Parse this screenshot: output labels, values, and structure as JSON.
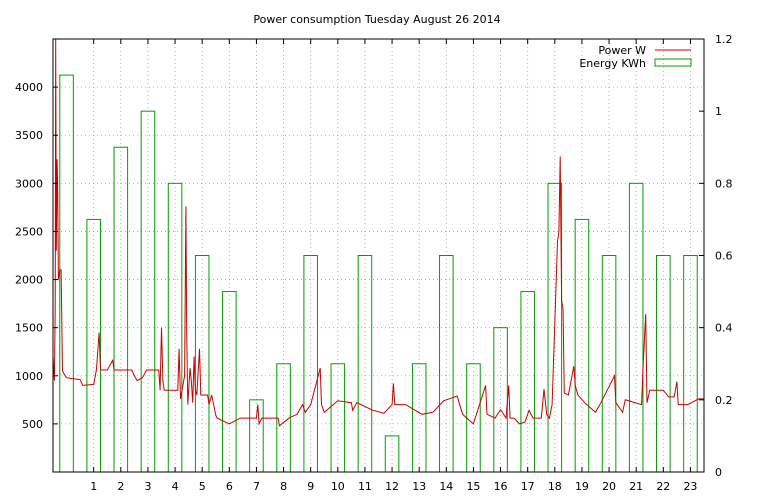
{
  "chart_data": {
    "type": "bar+line",
    "title": "Power consumption Tuesday August 26 2014",
    "x_ticks": [
      "1",
      "2",
      "3",
      "4",
      "5",
      "6",
      "7",
      "8",
      "9",
      "10",
      "11",
      "12",
      "13",
      "14",
      "15",
      "16",
      "17",
      "18",
      "19",
      "20",
      "21",
      "22",
      "23"
    ],
    "xlim": [
      0,
      24
    ],
    "y_left": {
      "ticks": [
        "500",
        "1000",
        "1500",
        "2000",
        "2500",
        "3000",
        "3500",
        "4000"
      ],
      "lim": [
        0,
        4500
      ],
      "unit": "W"
    },
    "y_right": {
      "ticks": [
        "0",
        "0.2",
        "0.4",
        "0.6",
        "0.8",
        "1",
        "1.2"
      ],
      "lim": [
        0,
        1.2
      ],
      "unit": "KWh"
    },
    "grid": true,
    "legend_position": "top-right",
    "series": [
      {
        "name": "Power W",
        "axis": "left",
        "color": "#cc0000",
        "points": [
          [
            0,
            1200
          ],
          [
            0.05,
            950
          ],
          [
            0.08,
            1700
          ],
          [
            0.1,
            4500
          ],
          [
            0.12,
            2300
          ],
          [
            0.15,
            3250
          ],
          [
            0.17,
            3000
          ],
          [
            0.2,
            2000
          ],
          [
            0.25,
            2100
          ],
          [
            0.3,
            2100
          ],
          [
            0.35,
            1050
          ],
          [
            0.45,
            1000
          ],
          [
            0.5,
            980
          ],
          [
            1.0,
            960
          ],
          [
            1.1,
            900
          ],
          [
            1.5,
            910
          ],
          [
            1.6,
            1060
          ],
          [
            1.7,
            1450
          ],
          [
            1.75,
            1060
          ],
          [
            2.0,
            1060
          ],
          [
            2.2,
            1160
          ],
          [
            2.25,
            1060
          ],
          [
            2.5,
            1060
          ],
          [
            2.9,
            1060
          ],
          [
            3.0,
            1000
          ],
          [
            3.1,
            950
          ],
          [
            3.3,
            980
          ],
          [
            3.45,
            1060
          ],
          [
            3.9,
            1060
          ],
          [
            3.95,
            850
          ],
          [
            4.0,
            1500
          ],
          [
            4.05,
            950
          ],
          [
            4.1,
            850
          ],
          [
            4.6,
            850
          ],
          [
            4.65,
            1280
          ],
          [
            4.7,
            760
          ],
          [
            4.85,
            1000
          ],
          [
            4.9,
            2760
          ],
          [
            4.93,
            1450
          ],
          [
            4.97,
            700
          ],
          [
            5.05,
            1080
          ],
          [
            5.1,
            950
          ],
          [
            5.15,
            720
          ],
          [
            5.2,
            1200
          ],
          [
            5.25,
            850
          ],
          [
            5.3,
            800
          ],
          [
            5.4,
            1280
          ],
          [
            5.45,
            800
          ],
          [
            5.7,
            800
          ],
          [
            5.75,
            700
          ],
          [
            5.85,
            800
          ],
          [
            6.0,
            590
          ],
          [
            6.05,
            560
          ],
          [
            6.5,
            500
          ],
          [
            6.9,
            560
          ],
          [
            7.5,
            560
          ],
          [
            7.55,
            700
          ],
          [
            7.6,
            500
          ],
          [
            7.7,
            560
          ],
          [
            8.3,
            560
          ],
          [
            8.35,
            480
          ],
          [
            8.7,
            560
          ],
          [
            9.0,
            600
          ],
          [
            9.2,
            700
          ],
          [
            9.3,
            620
          ],
          [
            9.5,
            700
          ],
          [
            9.85,
            1080
          ],
          [
            9.9,
            700
          ],
          [
            10.0,
            620
          ],
          [
            10.5,
            740
          ],
          [
            11.0,
            720
          ],
          [
            11.05,
            640
          ],
          [
            11.2,
            720
          ],
          [
            11.8,
            640
          ],
          [
            12.2,
            610
          ],
          [
            12.5,
            700
          ],
          [
            12.55,
            920
          ],
          [
            12.6,
            700
          ],
          [
            13.0,
            700
          ],
          [
            13.6,
            600
          ],
          [
            14.0,
            620
          ],
          [
            14.4,
            740
          ],
          [
            14.9,
            790
          ],
          [
            14.95,
            740
          ],
          [
            15.1,
            600
          ],
          [
            15.5,
            500
          ],
          [
            15.95,
            900
          ],
          [
            16.0,
            600
          ],
          [
            16.3,
            560
          ],
          [
            16.5,
            650
          ],
          [
            16.7,
            560
          ],
          [
            16.8,
            900
          ],
          [
            16.85,
            560
          ],
          [
            17.0,
            560
          ],
          [
            17.2,
            500
          ],
          [
            17.4,
            520
          ],
          [
            17.55,
            640
          ],
          [
            17.7,
            560
          ],
          [
            18.0,
            560
          ],
          [
            18.1,
            860
          ],
          [
            18.2,
            600
          ],
          [
            18.3,
            560
          ],
          [
            18.4,
            700
          ],
          [
            18.6,
            2400
          ],
          [
            18.65,
            2500
          ],
          [
            18.7,
            3280
          ],
          [
            18.75,
            1780
          ],
          [
            18.8,
            1700
          ],
          [
            18.85,
            820
          ],
          [
            19.0,
            800
          ],
          [
            19.2,
            1100
          ],
          [
            19.25,
            900
          ],
          [
            19.35,
            800
          ],
          [
            19.6,
            720
          ],
          [
            20.0,
            620
          ],
          [
            20.2,
            720
          ],
          [
            20.7,
            1000
          ],
          [
            20.75,
            720
          ],
          [
            21.0,
            620
          ],
          [
            21.1,
            750
          ],
          [
            21.7,
            700
          ],
          [
            21.75,
            1080
          ],
          [
            21.85,
            1640
          ],
          [
            21.9,
            720
          ],
          [
            22.0,
            850
          ],
          [
            22.5,
            850
          ],
          [
            22.7,
            780
          ],
          [
            22.9,
            780
          ],
          [
            23.0,
            940
          ],
          [
            23.05,
            700
          ],
          [
            23.4,
            700
          ],
          [
            23.8,
            760
          ],
          [
            24.0,
            760
          ]
        ]
      },
      {
        "name": "Energy KWh",
        "axis": "right",
        "color": "#00a000",
        "hourly": [
          1.1,
          0.7,
          0.9,
          1.0,
          0.8,
          0.6,
          0.5,
          0.2,
          0.3,
          0.6,
          0.3,
          0.6,
          0.1,
          0.3,
          0.6,
          0.3,
          0.4,
          0.5,
          0.8,
          0.7,
          0.6,
          0.8,
          0.6,
          0.6
        ]
      }
    ]
  }
}
